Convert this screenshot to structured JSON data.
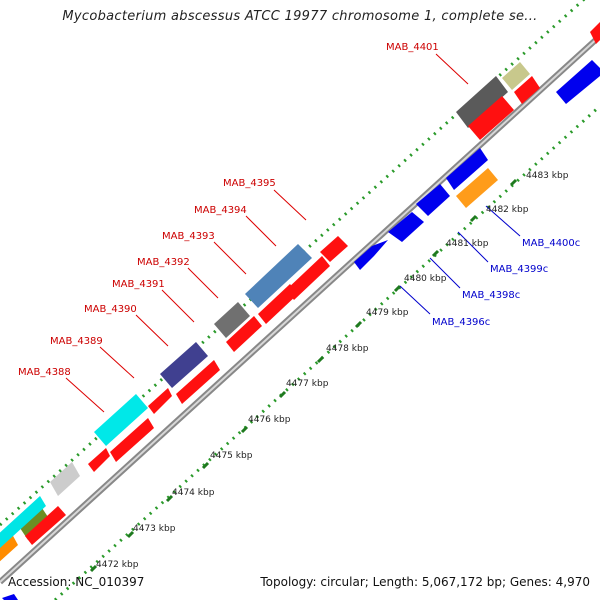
{
  "header": {
    "title": "Mycobacterium abscessus ATCC 19977 chromosome 1, complete se..."
  },
  "footer": {
    "accession": "Accession: NC_010397",
    "summary": "Topology: circular; Length: 5,067,172 bp; Genes: 4,970"
  },
  "colors": {
    "forward_gene": "#ff0000",
    "reverse_gene": "#0000ff",
    "forward_label": "#cc0000",
    "reverse_label": "#0000cc",
    "tick": "#228b22",
    "backbone": "#999999"
  },
  "ruler": {
    "ticks": [
      {
        "label": "4472 kbp"
      },
      {
        "label": "4473 kbp"
      },
      {
        "label": "4474 kbp"
      },
      {
        "label": "4475 kbp"
      },
      {
        "label": "4476 kbp"
      },
      {
        "label": "4477 kbp"
      },
      {
        "label": "4478 kbp"
      },
      {
        "label": "4479 kbp"
      },
      {
        "label": "4480 kbp"
      },
      {
        "label": "4481 kbp"
      },
      {
        "label": "4482 kbp"
      },
      {
        "label": "4483 kbp"
      }
    ]
  },
  "gene_labels": {
    "forward": [
      "MAB_4388",
      "MAB_4389",
      "MAB_4390",
      "MAB_4391",
      "MAB_4392",
      "MAB_4393",
      "MAB_4394",
      "MAB_4395",
      "MAB_4401"
    ],
    "reverse": [
      "MAB_4396c",
      "MAB_4398c",
      "MAB_4399c",
      "MAB_4400c"
    ]
  }
}
